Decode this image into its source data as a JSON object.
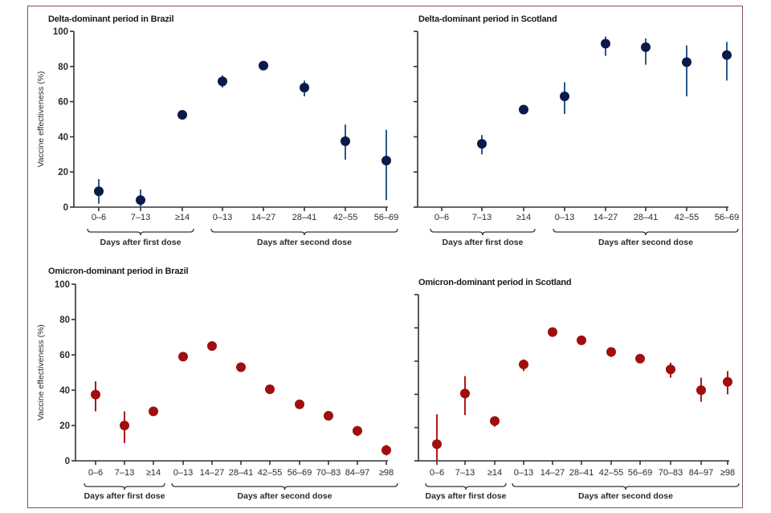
{
  "figure": {
    "border_color": "#8a4a62",
    "delta_color": "#0a1a4a",
    "delta_ci_color": "#2a5a8a",
    "omicron_color": "#a00e0e",
    "omicron_ci_color": "#b01a1a"
  },
  "chart_data": [
    {
      "type": "scatter",
      "title": "Delta-dominant period in Brazil",
      "ylabel": "Vaccine effectiveness (%)",
      "ylim": [
        0,
        100
      ],
      "yticks": [
        "0",
        "20",
        "40",
        "60",
        "80",
        "100"
      ],
      "show_ytick_labels": true,
      "categories": [
        "0–6",
        "7–13",
        "≥14",
        "0–13",
        "14–27",
        "28–41",
        "42–55",
        "56–69"
      ],
      "groups": [
        {
          "label": "Days after first dose",
          "from": 0,
          "to": 2
        },
        {
          "label": "Days after second dose",
          "from": 3,
          "to": 7
        }
      ],
      "series": [
        {
          "name": "Vaccine effectiveness",
          "color": "delta",
          "values": [
            9,
            4,
            52.5,
            71.5,
            80.5,
            68,
            37.5,
            26.5
          ],
          "ci_low": [
            2,
            0,
            51,
            68,
            79,
            63,
            27,
            4
          ],
          "ci_high": [
            16,
            10,
            54,
            75,
            82,
            72,
            47,
            44
          ]
        }
      ]
    },
    {
      "type": "scatter",
      "title": "Delta-dominant period in Scotland",
      "ylabel": "",
      "ylim": [
        0,
        100
      ],
      "yticks": [
        "0",
        "20",
        "40",
        "60",
        "80",
        "100"
      ],
      "show_ytick_labels": false,
      "categories": [
        "0–6",
        "7–13",
        "≥14",
        "0–13",
        "14–27",
        "28–41",
        "42–55",
        "56–69"
      ],
      "groups": [
        {
          "label": "Days after first dose",
          "from": 0,
          "to": 2
        },
        {
          "label": "Days after second dose",
          "from": 3,
          "to": 7
        }
      ],
      "series": [
        {
          "name": "Vaccine effectiveness",
          "color": "delta",
          "values": [
            null,
            36,
            55.5,
            63,
            93,
            91,
            82.5,
            86.5
          ],
          "ci_low": [
            null,
            30,
            54,
            53,
            86,
            81,
            63,
            72
          ],
          "ci_high": [
            null,
            41,
            57,
            71,
            97,
            96,
            92,
            94
          ]
        }
      ]
    },
    {
      "type": "scatter",
      "title": "Omicron-dominant period in Brazil",
      "ylabel": "Vaccine effectiveness (%)",
      "ylim": [
        0,
        100
      ],
      "yticks": [
        "0",
        "20",
        "40",
        "60",
        "80",
        "100"
      ],
      "show_ytick_labels": true,
      "categories": [
        "0–6",
        "7–13",
        "≥14",
        "0–13",
        "14–27",
        "28–41",
        "42–55",
        "56–69",
        "70–83",
        "84–97",
        "≥98"
      ],
      "groups": [
        {
          "label": "Days after first dose",
          "from": 0,
          "to": 2
        },
        {
          "label": "Days after second dose",
          "from": 3,
          "to": 10
        }
      ],
      "series": [
        {
          "name": "Vaccine effectiveness",
          "color": "omicron",
          "values": [
            37.5,
            20,
            28,
            59,
            65,
            53,
            40.5,
            32,
            25.5,
            17,
            6
          ],
          "ci_low": [
            28,
            10,
            27,
            58,
            64,
            52,
            39.5,
            31,
            24.5,
            14,
            3
          ],
          "ci_high": [
            45,
            28,
            29,
            60,
            66,
            54,
            41.5,
            33,
            26.5,
            19,
            9
          ]
        }
      ]
    },
    {
      "type": "scatter",
      "title": "Omicron-dominant period in Scotland",
      "ylabel": "",
      "ylim": [
        0,
        100
      ],
      "yticks": [
        "0",
        "20",
        "40",
        "60",
        "80",
        "100"
      ],
      "show_ytick_labels": false,
      "categories": [
        "0–6",
        "7–13",
        "≥14",
        "0–13",
        "14–27",
        "28–41",
        "42–55",
        "56–69",
        "70–83",
        "84–97",
        "≥98"
      ],
      "groups": [
        {
          "label": "Days after first dose",
          "from": 0,
          "to": 2
        },
        {
          "label": "Days after second dose",
          "from": 3,
          "to": 10
        }
      ],
      "series": [
        {
          "name": "Vaccine effectiveness",
          "color": "omicron",
          "values": [
            10,
            40.5,
            24,
            58,
            77.5,
            72.5,
            65.5,
            61.5,
            55,
            42.5,
            47.5
          ],
          "ci_low": [
            0,
            27.5,
            20.5,
            54,
            76.5,
            71,
            62.5,
            59,
            50,
            35.5,
            40
          ],
          "ci_high": [
            28,
            51,
            26.5,
            61,
            78.5,
            74,
            67,
            64,
            59,
            50,
            54
          ]
        }
      ]
    }
  ]
}
